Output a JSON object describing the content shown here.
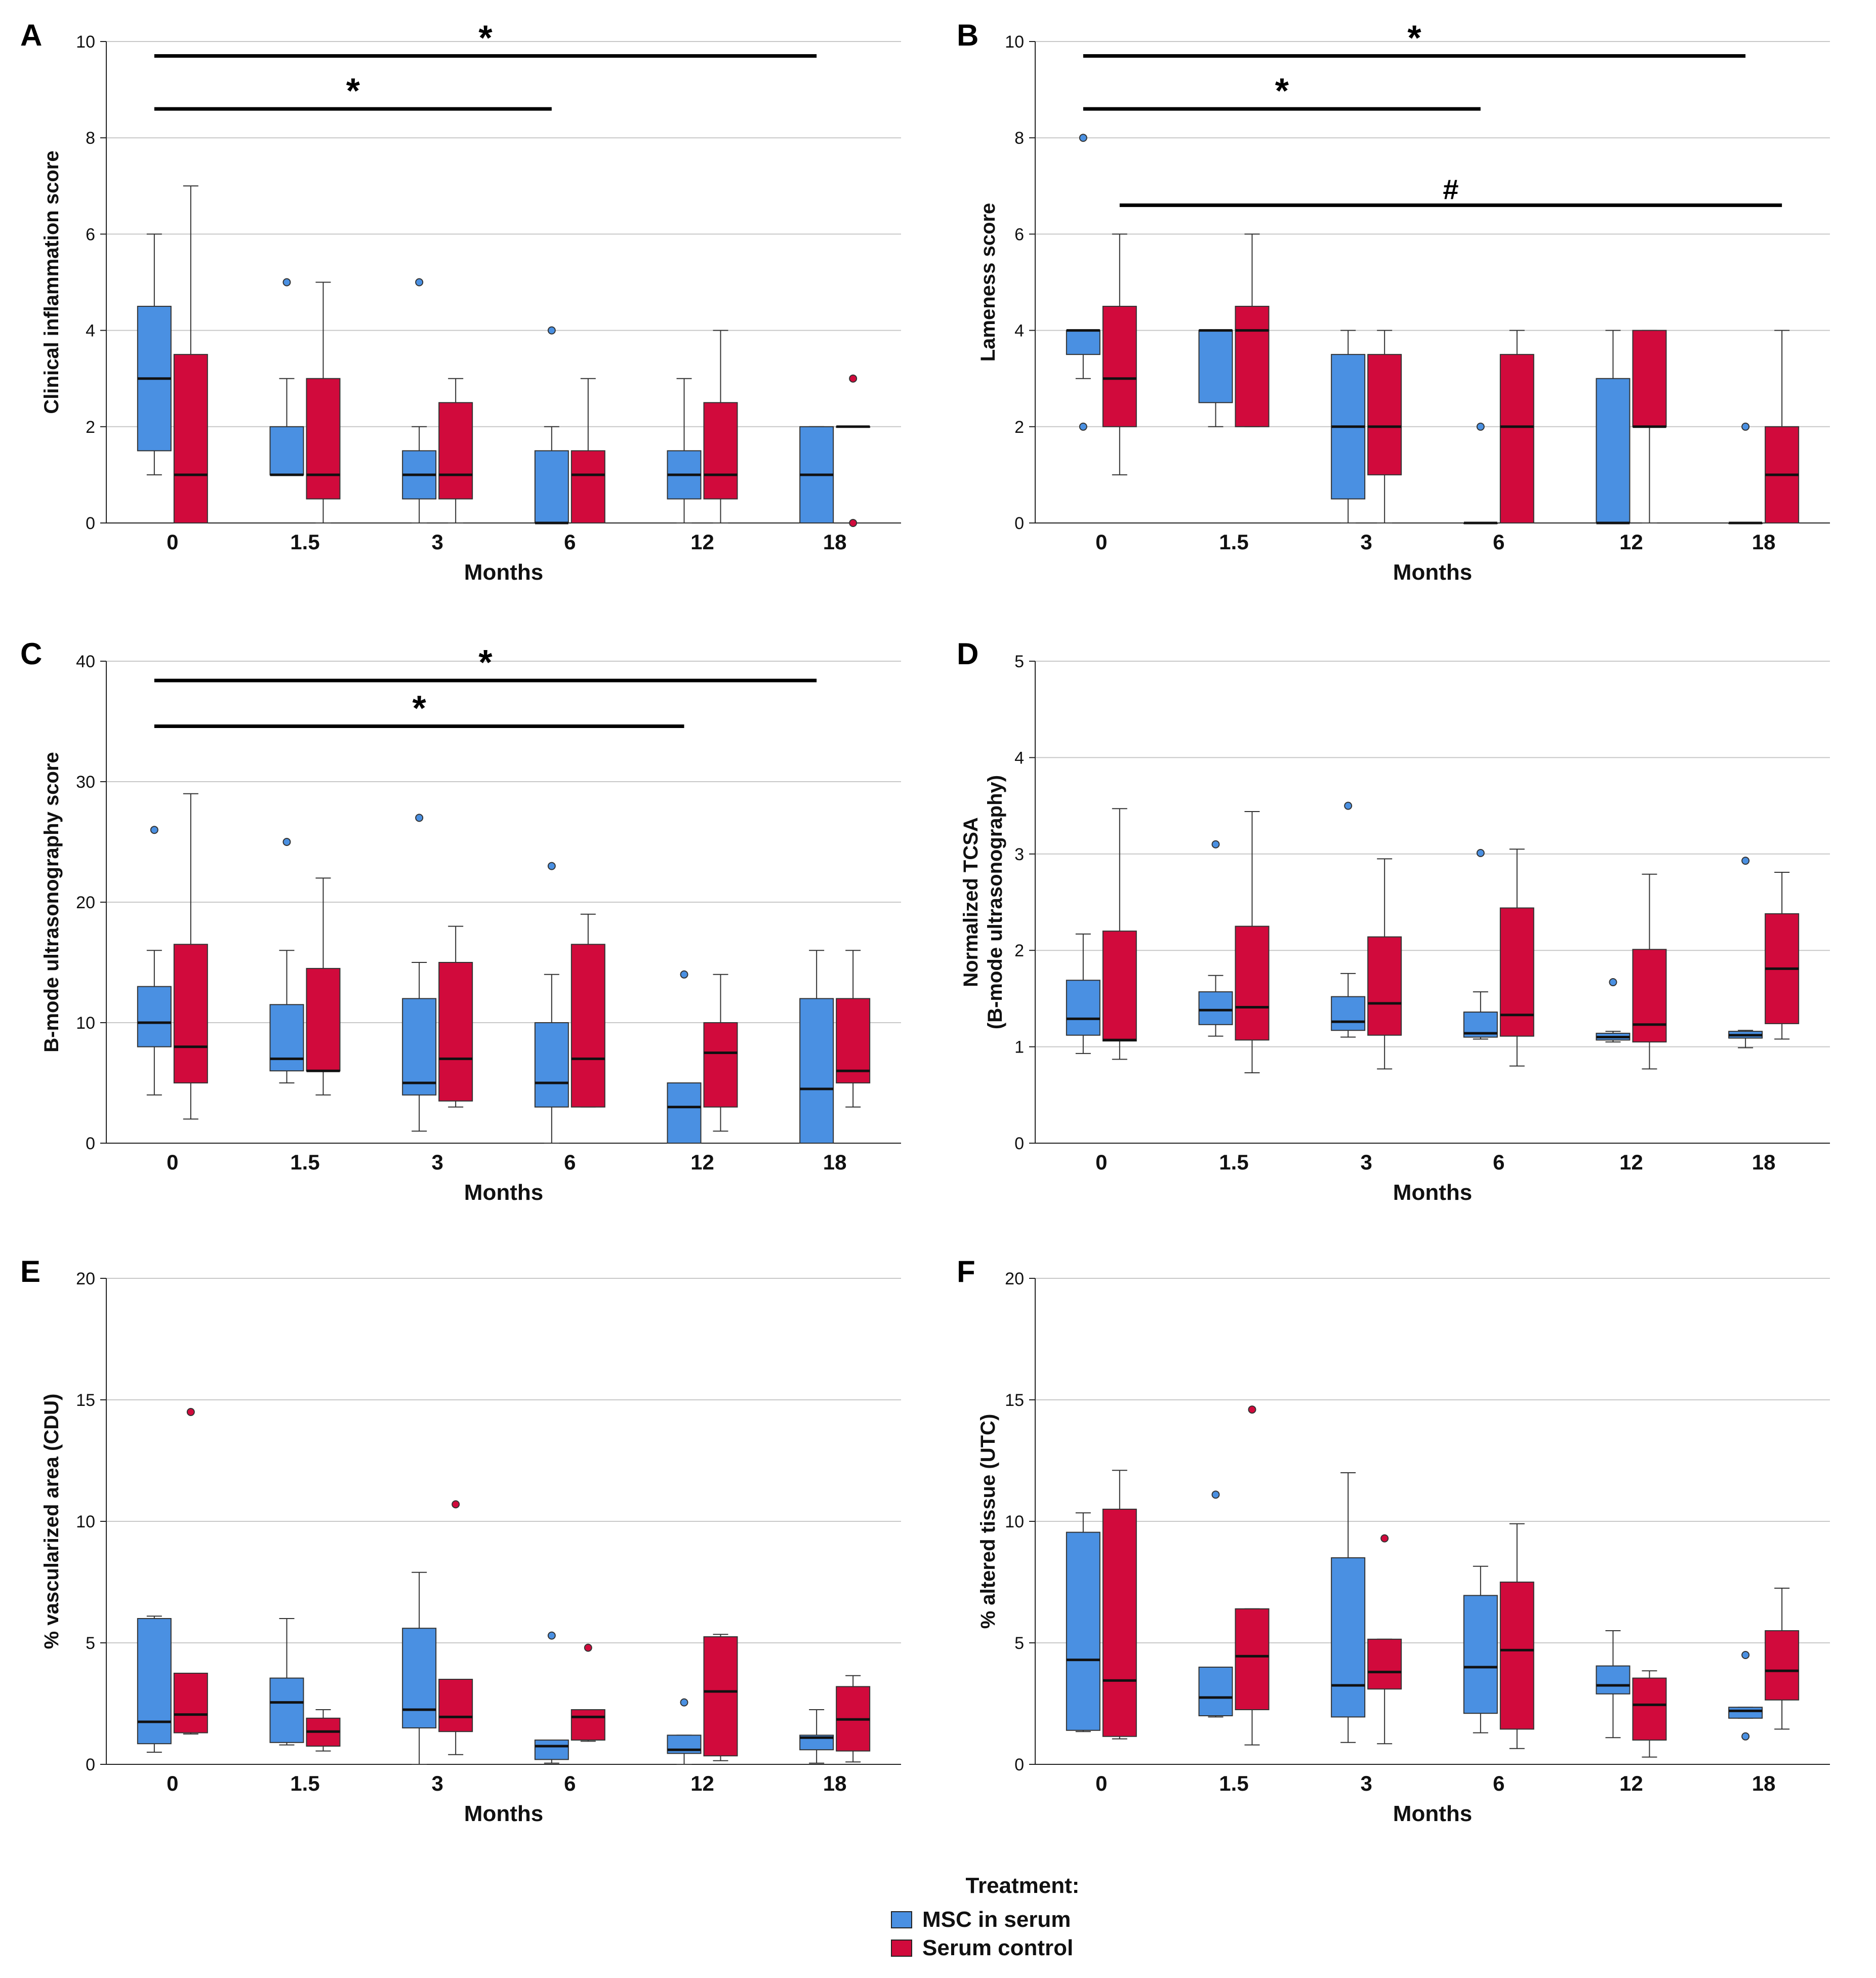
{
  "colors": {
    "msc": "#4a90e2",
    "control": "#d10a3c",
    "grid": "#c8c8c8",
    "axis": "#222222"
  },
  "legend": {
    "title": "Treatment:",
    "items": [
      "MSC in serum",
      "Serum control"
    ]
  },
  "chart_data": [
    {
      "panel": "A",
      "type": "box",
      "xlabel": "Months",
      "ylabel": "Clinical inflammation score",
      "categories": [
        "0",
        "1.5",
        "3",
        "6",
        "12",
        "18"
      ],
      "ylim": [
        0,
        10
      ],
      "yticks": [
        0,
        2,
        4,
        6,
        8,
        10
      ],
      "series": [
        {
          "name": "MSC in serum",
          "boxes": [
            {
              "min": 1,
              "q1": 1.5,
              "median": 3,
              "q3": 4.5,
              "max": 6,
              "outliers": []
            },
            {
              "min": 1,
              "q1": 1,
              "median": 1,
              "q3": 2,
              "max": 3,
              "outliers": [
                5
              ]
            },
            {
              "min": 0,
              "q1": 0.5,
              "median": 1,
              "q3": 1.5,
              "max": 2,
              "outliers": [
                5
              ]
            },
            {
              "min": 0,
              "q1": 0,
              "median": 0,
              "q3": 1.5,
              "max": 2,
              "outliers": [
                4
              ]
            },
            {
              "min": 0,
              "q1": 0.5,
              "median": 1,
              "q3": 1.5,
              "max": 3,
              "outliers": []
            },
            {
              "min": 0,
              "q1": 0,
              "median": 1,
              "q3": 2,
              "max": 2,
              "outliers": []
            }
          ]
        },
        {
          "name": "Serum control",
          "boxes": [
            {
              "min": 0,
              "q1": 0,
              "median": 1,
              "q3": 3.5,
              "max": 7,
              "outliers": []
            },
            {
              "min": 0,
              "q1": 0.5,
              "median": 1,
              "q3": 3,
              "max": 5,
              "outliers": []
            },
            {
              "min": 0,
              "q1": 0.5,
              "median": 1,
              "q3": 2.5,
              "max": 3,
              "outliers": []
            },
            {
              "min": 0,
              "q1": 0,
              "median": 1,
              "q3": 1.5,
              "max": 3,
              "outliers": []
            },
            {
              "min": 0,
              "q1": 0.5,
              "median": 1,
              "q3": 2.5,
              "max": 4,
              "outliers": []
            },
            {
              "min": 2,
              "q1": 2,
              "median": 2,
              "q3": 2,
              "max": 2,
              "outliers": [
                3,
                0
              ]
            }
          ]
        }
      ],
      "significance": [
        {
          "symbol": "*",
          "from": "0",
          "to": "18",
          "y": 9.7
        },
        {
          "symbol": "*",
          "from": "0",
          "to": "6",
          "y": 8.6
        }
      ]
    },
    {
      "panel": "B",
      "type": "box",
      "xlabel": "Months",
      "ylabel": "Lameness score",
      "categories": [
        "0",
        "1.5",
        "3",
        "6",
        "12",
        "18"
      ],
      "ylim": [
        0,
        10
      ],
      "yticks": [
        0,
        2,
        4,
        6,
        8,
        10
      ],
      "series": [
        {
          "name": "MSC in serum",
          "boxes": [
            {
              "min": 3,
              "q1": 3.5,
              "median": 4,
              "q3": 4,
              "max": 4,
              "outliers": [
                8,
                2
              ]
            },
            {
              "min": 2,
              "q1": 2.5,
              "median": 4,
              "q3": 4,
              "max": 4,
              "outliers": []
            },
            {
              "min": 0,
              "q1": 0.5,
              "median": 2,
              "q3": 3.5,
              "max": 4,
              "outliers": []
            },
            {
              "min": 0,
              "q1": 0,
              "median": 0,
              "q3": 0,
              "max": 0,
              "outliers": [
                2
              ]
            },
            {
              "min": 0,
              "q1": 0,
              "median": 0,
              "q3": 3,
              "max": 4,
              "outliers": []
            },
            {
              "min": 0,
              "q1": 0,
              "median": 0,
              "q3": 0,
              "max": 0,
              "outliers": [
                2
              ]
            }
          ]
        },
        {
          "name": "Serum control",
          "boxes": [
            {
              "min": 1,
              "q1": 2,
              "median": 3,
              "q3": 4.5,
              "max": 6,
              "outliers": []
            },
            {
              "min": 2,
              "q1": 2,
              "median": 4,
              "q3": 4.5,
              "max": 6,
              "outliers": []
            },
            {
              "min": 0,
              "q1": 1,
              "median": 2,
              "q3": 3.5,
              "max": 4,
              "outliers": []
            },
            {
              "min": 0,
              "q1": 0,
              "median": 2,
              "q3": 3.5,
              "max": 4,
              "outliers": []
            },
            {
              "min": 0,
              "q1": 2,
              "median": 2,
              "q3": 4,
              "max": 4,
              "outliers": []
            },
            {
              "min": 0,
              "q1": 0,
              "median": 1,
              "q3": 2,
              "max": 4,
              "outliers": []
            }
          ]
        }
      ],
      "significance": [
        {
          "symbol": "*",
          "from": "0",
          "to": "18",
          "y": 9.7
        },
        {
          "symbol": "*",
          "from": "0",
          "to": "6",
          "y": 8.6
        },
        {
          "symbol": "#",
          "from": "0",
          "to": "18",
          "y": 6.6,
          "group": "control"
        }
      ]
    },
    {
      "panel": "C",
      "type": "box",
      "xlabel": "Months",
      "ylabel": "B-mode ultrasonography score",
      "categories": [
        "0",
        "1.5",
        "3",
        "6",
        "12",
        "18"
      ],
      "ylim": [
        0,
        40
      ],
      "yticks": [
        0,
        10,
        20,
        30,
        40
      ],
      "series": [
        {
          "name": "MSC in serum",
          "boxes": [
            {
              "min": 4,
              "q1": 8,
              "median": 10,
              "q3": 13,
              "max": 16,
              "outliers": [
                26
              ]
            },
            {
              "min": 5,
              "q1": 6,
              "median": 7,
              "q3": 11.5,
              "max": 16,
              "outliers": [
                25
              ]
            },
            {
              "min": 1,
              "q1": 4,
              "median": 5,
              "q3": 12,
              "max": 15,
              "outliers": [
                27
              ]
            },
            {
              "min": 0,
              "q1": 3,
              "median": 5,
              "q3": 10,
              "max": 14,
              "outliers": [
                23
              ]
            },
            {
              "min": 0,
              "q1": 0,
              "median": 3,
              "q3": 5,
              "max": 5,
              "outliers": [
                14
              ]
            },
            {
              "min": 0,
              "q1": 0,
              "median": 4.5,
              "q3": 12,
              "max": 16,
              "outliers": []
            }
          ]
        },
        {
          "name": "Serum control",
          "boxes": [
            {
              "min": 2,
              "q1": 5,
              "median": 8,
              "q3": 16.5,
              "max": 29,
              "outliers": []
            },
            {
              "min": 4,
              "q1": 6,
              "median": 6,
              "q3": 14.5,
              "max": 22,
              "outliers": []
            },
            {
              "min": 3,
              "q1": 3.5,
              "median": 7,
              "q3": 15,
              "max": 18,
              "outliers": []
            },
            {
              "min": 3,
              "q1": 3,
              "median": 7,
              "q3": 16.5,
              "max": 19,
              "outliers": []
            },
            {
              "min": 1,
              "q1": 3,
              "median": 7.5,
              "q3": 10,
              "max": 14,
              "outliers": []
            },
            {
              "min": 3,
              "q1": 5,
              "median": 6,
              "q3": 12,
              "max": 16,
              "outliers": []
            }
          ]
        }
      ],
      "significance": [
        {
          "symbol": "*",
          "from": "0",
          "to": "18",
          "y": 38.4
        },
        {
          "symbol": "*",
          "from": "0",
          "to": "12",
          "y": 34.6
        }
      ]
    },
    {
      "panel": "D",
      "type": "box",
      "xlabel": "Months",
      "ylabel": "Normalized TCSA (B-mode ultrasonography)",
      "ylabel_lines": [
        "Normalized TCSA",
        "(B-mode ultrasonography)"
      ],
      "categories": [
        "0",
        "1.5",
        "3",
        "6",
        "12",
        "18"
      ],
      "ylim": [
        0,
        5
      ],
      "yticks": [
        0,
        1,
        2,
        3,
        4,
        5
      ],
      "series": [
        {
          "name": "MSC in serum",
          "boxes": [
            {
              "min": 0.93,
              "q1": 1.12,
              "median": 1.29,
              "q3": 1.69,
              "max": 2.17,
              "outliers": []
            },
            {
              "min": 1.11,
              "q1": 1.23,
              "median": 1.38,
              "q3": 1.57,
              "max": 1.74,
              "outliers": [
                3.1
              ]
            },
            {
              "min": 1.1,
              "q1": 1.17,
              "median": 1.26,
              "q3": 1.52,
              "max": 1.76,
              "outliers": [
                3.5
              ]
            },
            {
              "min": 1.08,
              "q1": 1.1,
              "median": 1.14,
              "q3": 1.36,
              "max": 1.57,
              "outliers": [
                3.01
              ]
            },
            {
              "min": 1.05,
              "q1": 1.07,
              "median": 1.1,
              "q3": 1.14,
              "max": 1.16,
              "outliers": [
                1.67
              ]
            },
            {
              "min": 0.99,
              "q1": 1.09,
              "median": 1.12,
              "q3": 1.16,
              "max": 1.17,
              "outliers": [
                2.93
              ]
            }
          ]
        },
        {
          "name": "Serum control",
          "boxes": [
            {
              "min": 0.87,
              "q1": 1.06,
              "median": 1.07,
              "q3": 2.2,
              "max": 3.47,
              "outliers": []
            },
            {
              "min": 0.73,
              "q1": 1.07,
              "median": 1.41,
              "q3": 2.25,
              "max": 3.44,
              "outliers": []
            },
            {
              "min": 0.77,
              "q1": 1.12,
              "median": 1.45,
              "q3": 2.14,
              "max": 2.95,
              "outliers": []
            },
            {
              "min": 0.8,
              "q1": 1.11,
              "median": 1.33,
              "q3": 2.44,
              "max": 3.05,
              "outliers": []
            },
            {
              "min": 0.77,
              "q1": 1.05,
              "median": 1.23,
              "q3": 2.01,
              "max": 2.79,
              "outliers": []
            },
            {
              "min": 1.08,
              "q1": 1.24,
              "median": 1.81,
              "q3": 2.38,
              "max": 2.81,
              "outliers": []
            }
          ]
        }
      ],
      "significance": []
    },
    {
      "panel": "E",
      "type": "box",
      "xlabel": "Months",
      "ylabel": "% vascularized area (CDU)",
      "categories": [
        "0",
        "1.5",
        "3",
        "6",
        "12",
        "18"
      ],
      "ylim": [
        0,
        20
      ],
      "yticks": [
        0,
        5,
        10,
        15,
        20
      ],
      "series": [
        {
          "name": "MSC in serum",
          "boxes": [
            {
              "min": 0.5,
              "q1": 0.85,
              "median": 1.75,
              "q3": 6.0,
              "max": 6.1,
              "outliers": []
            },
            {
              "min": 0.8,
              "q1": 0.9,
              "median": 2.55,
              "q3": 3.55,
              "max": 6.0,
              "outliers": []
            },
            {
              "min": 0.0,
              "q1": 1.5,
              "median": 2.25,
              "q3": 5.6,
              "max": 7.9,
              "outliers": []
            },
            {
              "min": 0.05,
              "q1": 0.2,
              "median": 0.75,
              "q3": 1.0,
              "max": 1.0,
              "outliers": [
                5.3
              ]
            },
            {
              "min": 0.0,
              "q1": 0.45,
              "median": 0.6,
              "q3": 1.2,
              "max": 1.2,
              "outliers": [
                2.55
              ]
            },
            {
              "min": 0.05,
              "q1": 0.6,
              "median": 1.1,
              "q3": 1.2,
              "max": 2.25,
              "outliers": []
            }
          ]
        },
        {
          "name": "Serum control",
          "boxes": [
            {
              "min": 1.25,
              "q1": 1.3,
              "median": 2.05,
              "q3": 3.75,
              "max": 3.75,
              "outliers": [
                14.5
              ]
            },
            {
              "min": 0.55,
              "q1": 0.75,
              "median": 1.35,
              "q3": 1.9,
              "max": 2.25,
              "outliers": []
            },
            {
              "min": 0.4,
              "q1": 1.35,
              "median": 1.95,
              "q3": 3.5,
              "max": 3.5,
              "outliers": [
                10.7
              ]
            },
            {
              "min": 0.95,
              "q1": 1.0,
              "median": 1.95,
              "q3": 2.25,
              "max": 2.25,
              "outliers": [
                4.8
              ]
            },
            {
              "min": 0.15,
              "q1": 0.35,
              "median": 3.0,
              "q3": 5.25,
              "max": 5.35,
              "outliers": []
            },
            {
              "min": 0.1,
              "q1": 0.55,
              "median": 1.85,
              "q3": 3.2,
              "max": 3.65,
              "outliers": []
            }
          ]
        }
      ],
      "significance": []
    },
    {
      "panel": "F",
      "type": "box",
      "xlabel": "Months",
      "ylabel": "% altered tissue (UTC)",
      "categories": [
        "0",
        "1.5",
        "3",
        "6",
        "12",
        "18"
      ],
      "ylim": [
        0,
        20
      ],
      "yticks": [
        0,
        5,
        10,
        15,
        20
      ],
      "series": [
        {
          "name": "MSC in serum",
          "boxes": [
            {
              "min": 1.35,
              "q1": 1.4,
              "median": 4.3,
              "q3": 9.55,
              "max": 10.35,
              "outliers": []
            },
            {
              "min": 1.95,
              "q1": 2.0,
              "median": 2.75,
              "q3": 4.0,
              "max": 4.0,
              "outliers": [
                11.1
              ]
            },
            {
              "min": 0.9,
              "q1": 1.95,
              "median": 3.25,
              "q3": 8.5,
              "max": 12.0,
              "outliers": []
            },
            {
              "min": 1.3,
              "q1": 2.1,
              "median": 4.0,
              "q3": 6.95,
              "max": 8.15,
              "outliers": []
            },
            {
              "min": 1.1,
              "q1": 2.9,
              "median": 3.25,
              "q3": 4.05,
              "max": 5.5,
              "outliers": []
            },
            {
              "min": 1.9,
              "q1": 1.9,
              "median": 2.2,
              "q3": 2.35,
              "max": 2.35,
              "outliers": [
                4.5,
                1.15
              ]
            }
          ]
        },
        {
          "name": "Serum control",
          "boxes": [
            {
              "min": 1.05,
              "q1": 1.15,
              "median": 3.45,
              "q3": 10.5,
              "max": 12.1,
              "outliers": []
            },
            {
              "min": 0.8,
              "q1": 2.25,
              "median": 4.45,
              "q3": 6.4,
              "max": 6.4,
              "outliers": [
                14.6
              ]
            },
            {
              "min": 0.85,
              "q1": 3.1,
              "median": 3.8,
              "q3": 5.15,
              "max": 5.15,
              "outliers": [
                9.3
              ]
            },
            {
              "min": 0.65,
              "q1": 1.45,
              "median": 4.7,
              "q3": 7.5,
              "max": 9.9,
              "outliers": []
            },
            {
              "min": 0.3,
              "q1": 1.0,
              "median": 2.45,
              "q3": 3.55,
              "max": 3.85,
              "outliers": []
            },
            {
              "min": 1.45,
              "q1": 2.65,
              "median": 3.85,
              "q3": 5.5,
              "max": 7.25,
              "outliers": []
            }
          ]
        }
      ],
      "significance": []
    }
  ]
}
